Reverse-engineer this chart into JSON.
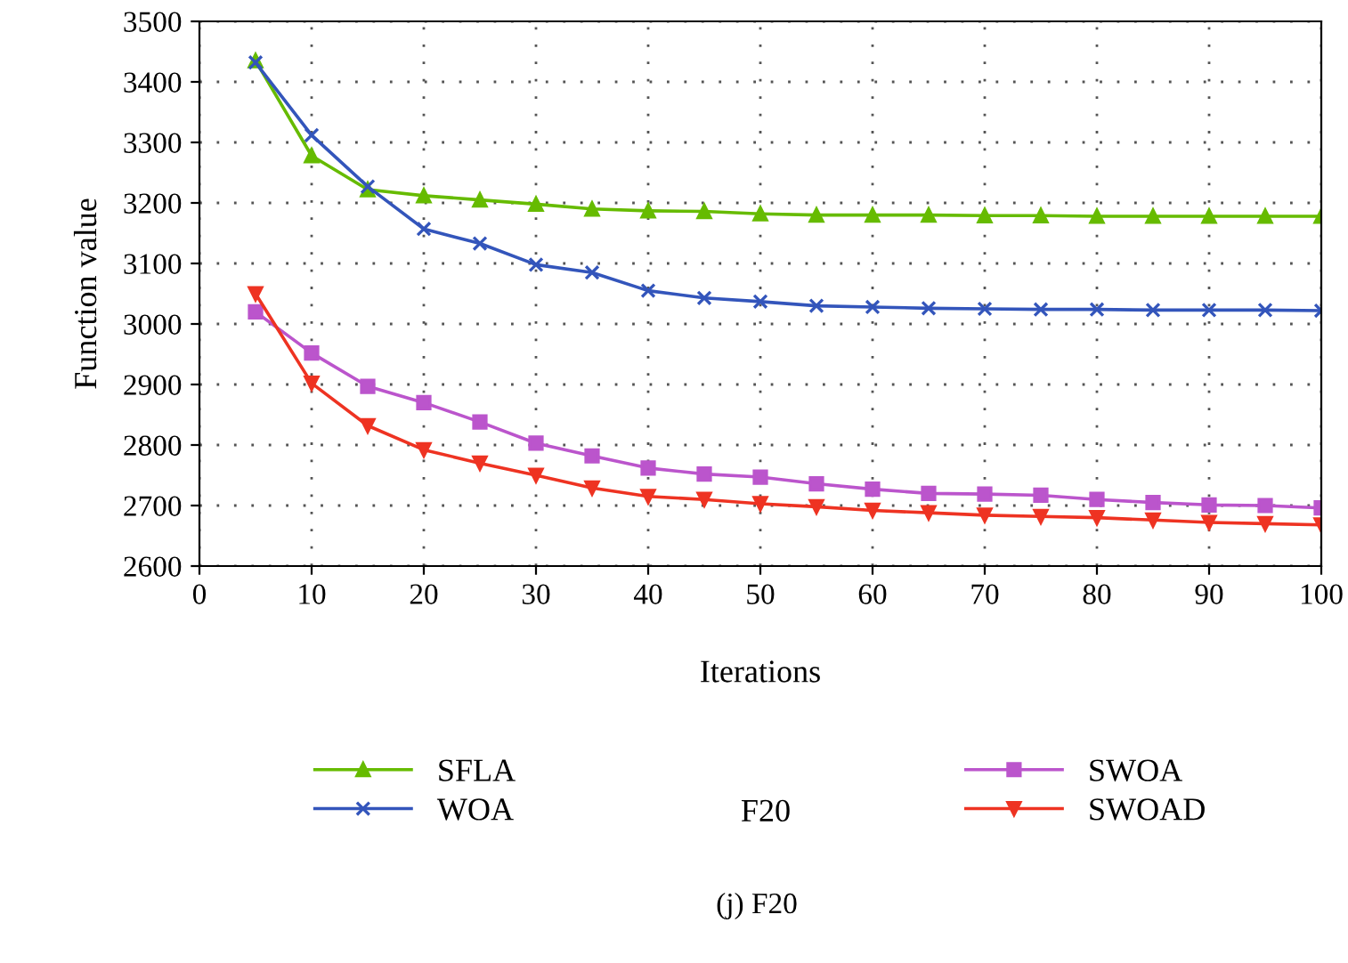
{
  "chart_data": {
    "type": "line",
    "xlabel": "Iterations",
    "ylabel": "Function value",
    "annotations": [
      "F20",
      "(j) F20"
    ],
    "x": [
      5,
      10,
      15,
      20,
      25,
      30,
      35,
      40,
      45,
      50,
      55,
      60,
      65,
      70,
      75,
      80,
      85,
      90,
      95,
      100
    ],
    "series": [
      {
        "name": "SFLA",
        "color": "#66bb00",
        "marker": "triangle",
        "values": [
          3435,
          3278,
          3222,
          3212,
          3205,
          3198,
          3190,
          3187,
          3186,
          3182,
          3180,
          3180,
          3180,
          3179,
          3179,
          3178,
          3178,
          3178,
          3178,
          3178
        ]
      },
      {
        "name": "WOA",
        "color": "#3355bb",
        "marker": "cross",
        "values": [
          3432,
          3312,
          3227,
          3157,
          3133,
          3098,
          3085,
          3055,
          3043,
          3037,
          3030,
          3028,
          3026,
          3025,
          3024,
          3024,
          3023,
          3023,
          3023,
          3022
        ]
      },
      {
        "name": "SWOA",
        "color": "#bb55cc",
        "marker": "square",
        "values": [
          3020,
          2952,
          2897,
          2870,
          2838,
          2803,
          2782,
          2762,
          2752,
          2747,
          2736,
          2727,
          2720,
          2719,
          2717,
          2710,
          2705,
          2701,
          2700,
          2696
        ]
      },
      {
        "name": "SWOAD",
        "color": "#ee3322",
        "marker": "triangle_down",
        "values": [
          3050,
          2902,
          2832,
          2792,
          2770,
          2750,
          2729,
          2715,
          2710,
          2703,
          2698,
          2692,
          2688,
          2684,
          2682,
          2680,
          2676,
          2672,
          2670,
          2668
        ]
      }
    ],
    "xlim": [
      0,
      100
    ],
    "xticks": [
      0,
      10,
      20,
      30,
      40,
      50,
      60,
      70,
      80,
      90,
      100
    ],
    "ylim": [
      2600,
      3500
    ],
    "yticks": [
      2600,
      2700,
      2800,
      2900,
      3000,
      3100,
      3200,
      3300,
      3400,
      3500
    ],
    "grid": true,
    "legend": "bottom",
    "line_style": "solid"
  }
}
